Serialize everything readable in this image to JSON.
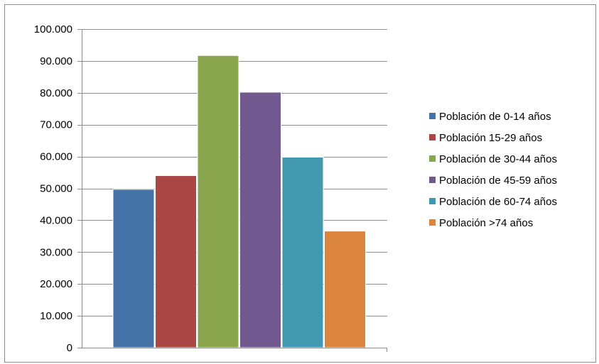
{
  "chart_data": {
    "type": "bar",
    "title": "",
    "xlabel": "",
    "ylabel": "",
    "ylim": [
      0,
      100000
    ],
    "yticks": [
      0,
      10000,
      20000,
      30000,
      40000,
      50000,
      60000,
      70000,
      80000,
      90000,
      100000
    ],
    "ytick_labels": [
      "0",
      "10.000",
      "20.000",
      "30.000",
      "40.000",
      "50.000",
      "60.000",
      "70.000",
      "80.000",
      "90.000",
      "100.000"
    ],
    "grid": true,
    "legend_position": "right",
    "categories": [
      ""
    ],
    "series": [
      {
        "name": "Población de 0-14 años",
        "values": [
          49700
        ],
        "color": "#4572A7"
      },
      {
        "name": "Población 15-29 años",
        "values": [
          54000
        ],
        "color": "#AA4643"
      },
      {
        "name": "Población de 30-44 años",
        "values": [
          91700
        ],
        "color": "#89A54E"
      },
      {
        "name": "Población de 45-59 años",
        "values": [
          80200
        ],
        "color": "#71588F"
      },
      {
        "name": "Población de 60-74 años",
        "values": [
          59800
        ],
        "color": "#4198AF"
      },
      {
        "name": "Población >74 años",
        "values": [
          36600
        ],
        "color": "#DB843D"
      }
    ]
  }
}
